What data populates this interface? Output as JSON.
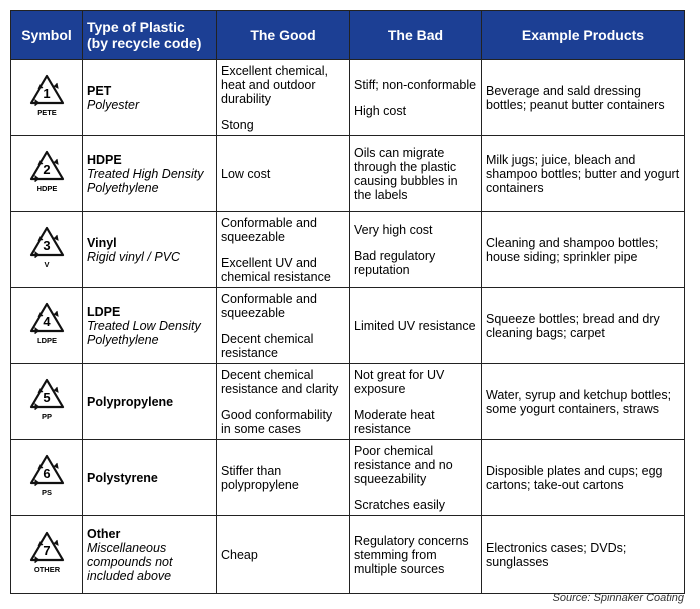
{
  "headers": {
    "symbol": "Symbol",
    "type_line1": "Type of Plastic",
    "type_line2": "(by recycle code)",
    "good": "The Good",
    "bad": "The Bad",
    "examples": "Example Products"
  },
  "rows": [
    {
      "code": "1",
      "code_label": "PETE",
      "name": "PET",
      "sub": [
        "Polyester"
      ],
      "good": [
        "Excellent chemical, heat and outdoor durability",
        "Stong"
      ],
      "bad": [
        "Stiff; non-conformable",
        "High cost"
      ],
      "examples": "Beverage and sald dressing bottles; peanut butter containers"
    },
    {
      "code": "2",
      "code_label": "HDPE",
      "name": "HDPE",
      "sub": [
        "Treated High Density",
        "Polyethylene"
      ],
      "good": [
        "Low cost"
      ],
      "bad": [
        "Oils can migrate through the plastic causing bubbles in the labels"
      ],
      "examples": "Milk jugs; juice, bleach and shampoo bottles; butter and yogurt containers"
    },
    {
      "code": "3",
      "code_label": "V",
      "name": "Vinyl",
      "sub": [
        "Rigid vinyl / PVC"
      ],
      "good": [
        "Conformable and squeezable",
        "Excellent UV and chemical resistance"
      ],
      "bad": [
        "Very high cost",
        "Bad regulatory reputation"
      ],
      "examples": "Cleaning and shampoo bottles; house siding; sprinkler pipe"
    },
    {
      "code": "4",
      "code_label": "LDPE",
      "name": "LDPE",
      "sub": [
        "Treated Low Density",
        "Polyethylene"
      ],
      "good": [
        "Conformable and squeezable",
        "Decent chemical resistance"
      ],
      "bad": [
        "Limited UV resistance"
      ],
      "examples": "Squeeze bottles; bread and dry cleaning bags; carpet"
    },
    {
      "code": "5",
      "code_label": "PP",
      "name": "Polypropylene",
      "sub": [],
      "good": [
        "Decent chemical resistance and clarity",
        "Good conformability in some cases"
      ],
      "bad": [
        "Not great for UV exposure",
        "Moderate heat resistance"
      ],
      "examples": "Water, syrup and ketchup bottles; some yogurt containers, straws"
    },
    {
      "code": "6",
      "code_label": "PS",
      "name": "Polystyrene",
      "sub": [],
      "good": [
        "Stiffer than polypropylene"
      ],
      "bad": [
        "Poor chemical resistance and no squeezability",
        "Scratches easily"
      ],
      "examples": "Disposible plates and cups; egg cartons; take-out cartons"
    },
    {
      "code": "7",
      "code_label": "OTHER",
      "name": "Other",
      "sub": [
        "Miscellaneous",
        "compounds not",
        "included above"
      ],
      "good": [
        "Cheap"
      ],
      "bad": [
        "Regulatory concerns stemming from multiple sources"
      ],
      "examples": "Electronics cases; DVDs; sunglasses"
    }
  ],
  "source": "Source: Spinnaker Coating"
}
